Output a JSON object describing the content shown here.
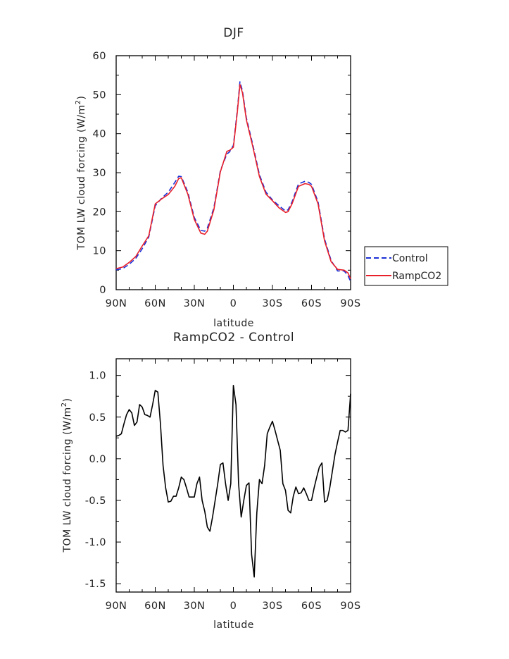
{
  "chart_data": [
    {
      "type": "line",
      "title": "DJF",
      "xlabel": "latitude",
      "ylabel": "TOM LW cloud forcing (W/m",
      "ylabel_sup": "2",
      "ylabel_tail": ")",
      "xlim": [
        90,
        -90
      ],
      "ylim": [
        0,
        60
      ],
      "xticks": [
        90,
        60,
        30,
        0,
        -30,
        -60,
        -90
      ],
      "xtick_labels": [
        "90N",
        "60N",
        "30N",
        "0",
        "30S",
        "60S",
        "90S"
      ],
      "yticks": [
        0,
        10,
        20,
        30,
        40,
        50,
        60
      ],
      "ytick_labels": [
        "0",
        "10",
        "20",
        "30",
        "40",
        "50",
        "60"
      ],
      "legend_position": "right",
      "series": [
        {
          "name": "Control",
          "color": "#1a2fd6",
          "dash": "dashed",
          "x": [
            90,
            85,
            80,
            75,
            70,
            65,
            60,
            55,
            50,
            45,
            42,
            40,
            35,
            30,
            25,
            22,
            20,
            15,
            10,
            5,
            3,
            0,
            -3,
            -5,
            -7,
            -10,
            -15,
            -20,
            -25,
            -30,
            -35,
            -40,
            -42,
            -45,
            -50,
            -55,
            -58,
            -60,
            -65,
            -70,
            -75,
            -80,
            -85,
            -88,
            -90
          ],
          "y": [
            5.1,
            5.4,
            6.5,
            8.0,
            10.5,
            13.5,
            21.5,
            23.5,
            25,
            27.5,
            29.1,
            29.0,
            25,
            18.5,
            15.2,
            15.0,
            15.8,
            21,
            30.5,
            34.8,
            35.3,
            37,
            46,
            53.3,
            51,
            44,
            37,
            29.5,
            25,
            23,
            21.5,
            20.2,
            20.5,
            22.5,
            27.1,
            27.8,
            27.5,
            27,
            22.5,
            13,
            7.5,
            4.8,
            4.8,
            3.6,
            2.1
          ]
        },
        {
          "name": "RampCO2",
          "color": "#e8202a",
          "dash": "solid",
          "x": [
            90,
            85,
            80,
            75,
            70,
            65,
            60,
            55,
            50,
            45,
            42,
            40,
            35,
            30,
            25,
            22,
            20,
            15,
            10,
            5,
            3,
            0,
            -3,
            -5,
            -7,
            -10,
            -15,
            -20,
            -25,
            -30,
            -35,
            -40,
            -42,
            -45,
            -50,
            -55,
            -58,
            -60,
            -65,
            -70,
            -75,
            -80,
            -85,
            -88,
            -90
          ],
          "y": [
            5.4,
            5.8,
            7.0,
            8.5,
            11.2,
            13.8,
            22.0,
            23.3,
            24.4,
            26.5,
            28.5,
            28.7,
            24.5,
            18.0,
            14.5,
            14.2,
            15.0,
            20.5,
            30.2,
            35.5,
            35.7,
            36.5,
            45.5,
            52.6,
            50.5,
            43.5,
            36.5,
            29.0,
            24.5,
            22.8,
            21.0,
            19.8,
            20.0,
            22.0,
            26.5,
            27.2,
            27.0,
            26.5,
            22.0,
            12.5,
            7.2,
            5.2,
            5.0,
            4.3,
            2.8
          ]
        }
      ]
    },
    {
      "type": "line",
      "title": "RampCO2 - Control",
      "xlabel": "latitude",
      "ylabel": "TOM LW cloud forcing (W/m",
      "ylabel_sup": "2",
      "ylabel_tail": ")",
      "xlim": [
        90,
        -90
      ],
      "ylim": [
        -1.6,
        1.2
      ],
      "xticks": [
        90,
        60,
        30,
        0,
        -30,
        -60,
        -90
      ],
      "xtick_labels": [
        "90N",
        "60N",
        "30N",
        "0",
        "30S",
        "60S",
        "90S"
      ],
      "yticks": [
        1.0,
        0.5,
        0.0,
        -0.5,
        -1.0,
        -1.5
      ],
      "ytick_labels": [
        "1.0",
        "0.5",
        "0.0",
        "-0.5",
        "-1.0",
        "-1.5"
      ],
      "series": [
        {
          "name": "",
          "color": "#000000",
          "dash": "solid",
          "x": [
            90,
            88,
            86,
            84,
            82,
            80,
            78,
            76,
            74,
            72,
            70,
            68,
            66,
            64,
            62,
            60,
            58,
            56,
            54,
            52,
            50,
            48,
            46,
            44,
            42,
            40,
            38,
            36,
            34,
            32,
            30,
            28,
            26,
            24,
            22,
            20,
            18,
            16,
            14,
            12,
            10,
            8,
            6,
            4,
            2,
            0,
            -2,
            -4,
            -6,
            -8,
            -10,
            -12,
            -14,
            -16,
            -18,
            -20,
            -22,
            -24,
            -26,
            -28,
            -30,
            -32,
            -34,
            -36,
            -38,
            -40,
            -42,
            -44,
            -46,
            -48,
            -50,
            -52,
            -54,
            -56,
            -58,
            -60,
            -62,
            -64,
            -66,
            -68,
            -70,
            -72,
            -74,
            -76,
            -78,
            -80,
            -82,
            -84,
            -86,
            -88,
            -90
          ],
          "y": [
            0.27,
            0.28,
            0.3,
            0.42,
            0.53,
            0.59,
            0.55,
            0.4,
            0.44,
            0.65,
            0.62,
            0.53,
            0.52,
            0.5,
            0.65,
            0.82,
            0.8,
            0.42,
            -0.08,
            -0.35,
            -0.52,
            -0.51,
            -0.45,
            -0.45,
            -0.35,
            -0.22,
            -0.25,
            -0.35,
            -0.46,
            -0.46,
            -0.46,
            -0.3,
            -0.22,
            -0.5,
            -0.63,
            -0.82,
            -0.87,
            -0.7,
            -0.5,
            -0.3,
            -0.07,
            -0.05,
            -0.3,
            -0.5,
            -0.3,
            0.88,
            0.65,
            -0.3,
            -0.7,
            -0.5,
            -0.32,
            -0.29,
            -1.15,
            -1.42,
            -0.65,
            -0.25,
            -0.3,
            -0.08,
            0.3,
            0.38,
            0.45,
            0.34,
            0.22,
            0.1,
            -0.3,
            -0.38,
            -0.62,
            -0.65,
            -0.45,
            -0.34,
            -0.42,
            -0.41,
            -0.35,
            -0.42,
            -0.5,
            -0.5,
            -0.35,
            -0.22,
            -0.1,
            -0.05,
            -0.52,
            -0.5,
            -0.35,
            -0.15,
            0.05,
            0.2,
            0.34,
            0.34,
            0.32,
            0.34,
            0.78
          ]
        }
      ]
    }
  ]
}
